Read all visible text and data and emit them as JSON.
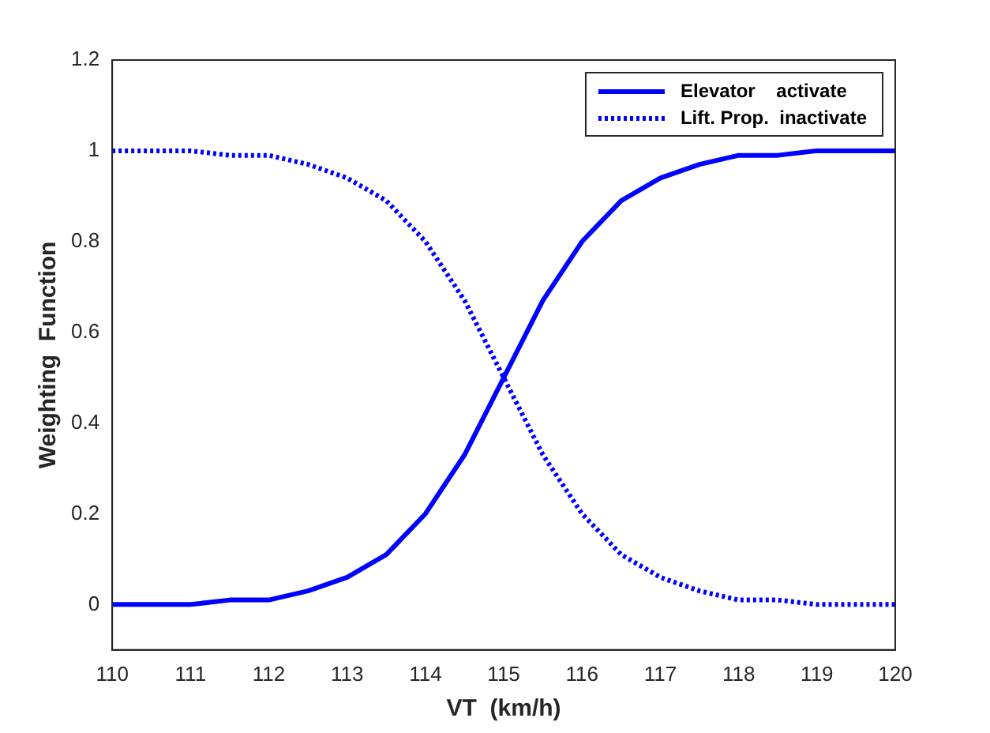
{
  "chart_data": {
    "type": "line",
    "xlabel": "VT  (km/h)",
    "ylabel": "Weighting  Function",
    "x": [
      110,
      110.5,
      111,
      111.5,
      112,
      112.5,
      113,
      113.5,
      114,
      114.5,
      115,
      115.5,
      116,
      116.5,
      117,
      117.5,
      118,
      118.5,
      119,
      119.5,
      120
    ],
    "series": [
      {
        "name": "Elevator    activate",
        "color": "#0000ff",
        "line_style": "solid",
        "values": [
          0,
          0,
          0,
          0.01,
          0.01,
          0.03,
          0.06,
          0.11,
          0.2,
          0.33,
          0.5,
          0.67,
          0.8,
          0.89,
          0.94,
          0.97,
          0.99,
          0.99,
          1,
          1,
          1
        ]
      },
      {
        "name": "Lift. Prop.  inactivate",
        "color": "#0000ff",
        "line_style": "dotted",
        "values": [
          1,
          1,
          1,
          0.99,
          0.99,
          0.97,
          0.94,
          0.89,
          0.8,
          0.67,
          0.5,
          0.33,
          0.2,
          0.11,
          0.06,
          0.03,
          0.01,
          0.01,
          0,
          0,
          0
        ]
      }
    ],
    "xlim": [
      110,
      120
    ],
    "xticks": [
      110,
      111,
      112,
      113,
      114,
      115,
      116,
      117,
      118,
      119,
      120
    ],
    "ylim": [
      -0.1,
      1.2
    ],
    "yticks": [
      0,
      0.2,
      0.4,
      0.6,
      0.8,
      1,
      1.2
    ],
    "grid": false,
    "legend": "top right",
    "marker": "none"
  }
}
